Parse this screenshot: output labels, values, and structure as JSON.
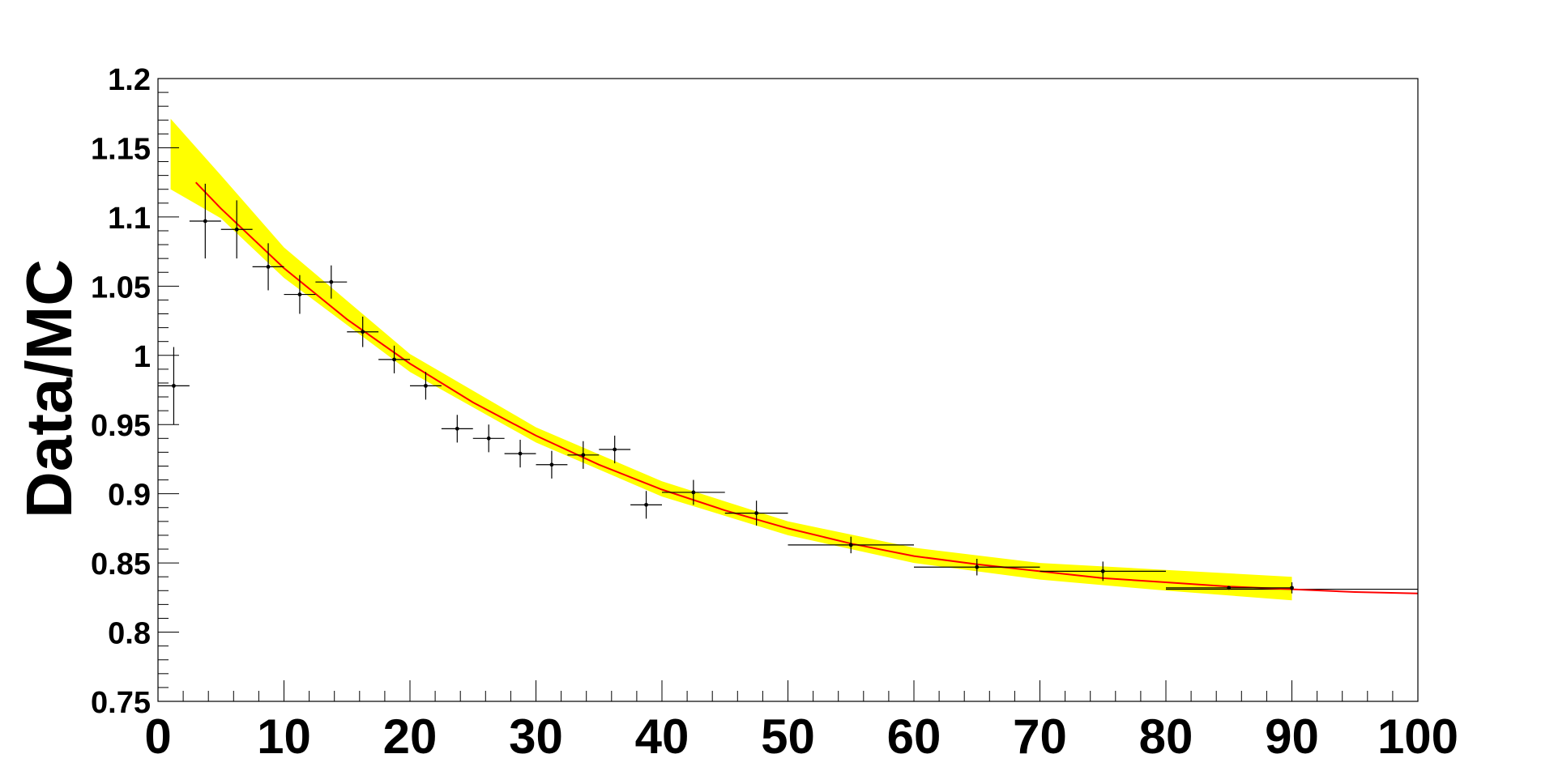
{
  "chart_data": {
    "type": "scatter",
    "title": "",
    "xlabel": "",
    "ylabel": "Data/MC",
    "xlim": [
      0,
      100
    ],
    "ylim": [
      0.75,
      1.2
    ],
    "grid": false,
    "x_ticks": [
      "0",
      "10",
      "20",
      "30",
      "40",
      "50",
      "60",
      "70",
      "80",
      "90",
      "100"
    ],
    "y_ticks": [
      "0.75",
      "0.8",
      "0.85",
      "0.9",
      "0.95",
      "1",
      "1.05",
      "1.1",
      "1.15",
      "1.2"
    ],
    "colors": {
      "points": "#000000",
      "fit": "#ff0000",
      "band": "#ffff00",
      "reference": "#000000"
    },
    "series": [
      {
        "kind": "data",
        "points": [
          {
            "x": 1.25,
            "xerr": 1.25,
            "y": 0.978,
            "yerr": 0.028
          },
          {
            "x": 3.75,
            "xerr": 1.25,
            "y": 1.097,
            "yerr": 0.027
          },
          {
            "x": 6.25,
            "xerr": 1.25,
            "y": 1.091,
            "yerr": 0.021
          },
          {
            "x": 8.75,
            "xerr": 1.25,
            "y": 1.064,
            "yerr": 0.017
          },
          {
            "x": 11.25,
            "xerr": 1.25,
            "y": 1.044,
            "yerr": 0.014
          },
          {
            "x": 13.75,
            "xerr": 1.25,
            "y": 1.053,
            "yerr": 0.012
          },
          {
            "x": 16.25,
            "xerr": 1.25,
            "y": 1.017,
            "yerr": 0.011
          },
          {
            "x": 18.75,
            "xerr": 1.25,
            "y": 0.997,
            "yerr": 0.01
          },
          {
            "x": 21.25,
            "xerr": 1.25,
            "y": 0.978,
            "yerr": 0.01
          },
          {
            "x": 23.75,
            "xerr": 1.25,
            "y": 0.947,
            "yerr": 0.01
          },
          {
            "x": 26.25,
            "xerr": 1.25,
            "y": 0.94,
            "yerr": 0.01
          },
          {
            "x": 28.75,
            "xerr": 1.25,
            "y": 0.929,
            "yerr": 0.01
          },
          {
            "x": 31.25,
            "xerr": 1.25,
            "y": 0.921,
            "yerr": 0.01
          },
          {
            "x": 33.75,
            "xerr": 1.25,
            "y": 0.928,
            "yerr": 0.01
          },
          {
            "x": 36.25,
            "xerr": 1.25,
            "y": 0.932,
            "yerr": 0.01
          },
          {
            "x": 38.75,
            "xerr": 1.25,
            "y": 0.892,
            "yerr": 0.01
          },
          {
            "x": 42.5,
            "xerr": 2.5,
            "y": 0.901,
            "yerr": 0.009
          },
          {
            "x": 47.5,
            "xerr": 2.5,
            "y": 0.886,
            "yerr": 0.009
          },
          {
            "x": 55,
            "xerr": 5,
            "y": 0.863,
            "yerr": 0.006
          },
          {
            "x": 65,
            "xerr": 5,
            "y": 0.847,
            "yerr": 0.006
          },
          {
            "x": 75,
            "xerr": 5,
            "y": 0.844,
            "yerr": 0.007
          },
          {
            "x": 85,
            "xerr": 5,
            "y": 0.832,
            "yerr": 0.0
          },
          {
            "x": 90,
            "xerr": 0,
            "y": 0.832,
            "yerr": 0.004
          }
        ]
      },
      {
        "kind": "fit",
        "model": "exponential",
        "x": [
          3,
          5,
          10,
          15,
          20,
          25,
          30,
          35,
          40,
          45,
          50,
          55,
          60,
          65,
          70,
          75,
          80,
          85,
          90,
          95,
          100
        ],
        "y": [
          1.125,
          1.106,
          1.063,
          1.026,
          0.994,
          0.966,
          0.942,
          0.921,
          0.903,
          0.888,
          0.875,
          0.864,
          0.855,
          0.849,
          0.844,
          0.839,
          0.836,
          0.833,
          0.831,
          0.829,
          0.828
        ]
      },
      {
        "kind": "uncertainty-band",
        "x": [
          1,
          5,
          10,
          20,
          30,
          40,
          50,
          60,
          70,
          80,
          90
        ],
        "y_low": [
          1.12,
          1.099,
          1.056,
          0.988,
          0.937,
          0.898,
          0.87,
          0.85,
          0.838,
          0.83,
          0.823
        ],
        "y_high": [
          1.171,
          1.13,
          1.078,
          1.001,
          0.948,
          0.909,
          0.88,
          0.861,
          0.85,
          0.845,
          0.84
        ]
      },
      {
        "kind": "reference-line",
        "x": [
          80,
          100
        ],
        "y": [
          0.831,
          0.831
        ]
      }
    ]
  }
}
